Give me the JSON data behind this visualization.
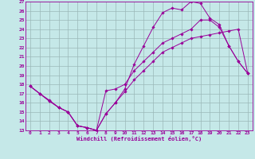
{
  "xlabel": "Windchill (Refroidissement éolien,°C)",
  "ylabel": "",
  "xlim": [
    -0.5,
    23.5
  ],
  "ylim": [
    13,
    27
  ],
  "xticks": [
    0,
    1,
    2,
    3,
    4,
    5,
    6,
    7,
    8,
    9,
    10,
    11,
    12,
    13,
    14,
    15,
    16,
    17,
    18,
    19,
    20,
    21,
    22,
    23
  ],
  "yticks": [
    13,
    14,
    15,
    16,
    17,
    18,
    19,
    20,
    21,
    22,
    23,
    24,
    25,
    26,
    27
  ],
  "bg_color": "#c5e8e8",
  "line_color": "#990099",
  "grid_color": "#9ab8b8",
  "line1_x": [
    0,
    1,
    2,
    3,
    4,
    5,
    6,
    7,
    8,
    9,
    10,
    11,
    12,
    13,
    14,
    15,
    16,
    17,
    18,
    19,
    20,
    21,
    22,
    23
  ],
  "line1_y": [
    17.8,
    17.0,
    16.2,
    15.5,
    15.0,
    13.5,
    13.3,
    13.0,
    14.8,
    16.0,
    17.2,
    18.5,
    19.5,
    20.5,
    21.5,
    22.0,
    22.5,
    23.0,
    23.2,
    23.4,
    23.6,
    23.8,
    24.0,
    19.2
  ],
  "line2_x": [
    0,
    1,
    2,
    3,
    4,
    5,
    6,
    7,
    8,
    9,
    10,
    11,
    12,
    13,
    14,
    15,
    16,
    17,
    18,
    19,
    20,
    21,
    22,
    23
  ],
  "line2_y": [
    17.8,
    17.0,
    16.2,
    15.5,
    15.0,
    13.5,
    13.3,
    13.0,
    14.8,
    16.0,
    17.5,
    20.2,
    22.2,
    24.2,
    25.8,
    26.3,
    26.1,
    27.0,
    26.8,
    25.2,
    24.5,
    22.2,
    20.5,
    19.2
  ],
  "line3_x": [
    0,
    1,
    2,
    3,
    4,
    5,
    6,
    7,
    8,
    9,
    10,
    11,
    12,
    13,
    14,
    15,
    16,
    17,
    18,
    19,
    20,
    21,
    22,
    23
  ],
  "line3_y": [
    17.8,
    17.0,
    16.3,
    15.5,
    15.0,
    13.5,
    13.3,
    13.0,
    17.3,
    17.5,
    18.0,
    19.5,
    20.5,
    21.5,
    22.5,
    23.0,
    23.5,
    24.0,
    25.0,
    25.0,
    24.2,
    22.2,
    20.5,
    19.2
  ]
}
